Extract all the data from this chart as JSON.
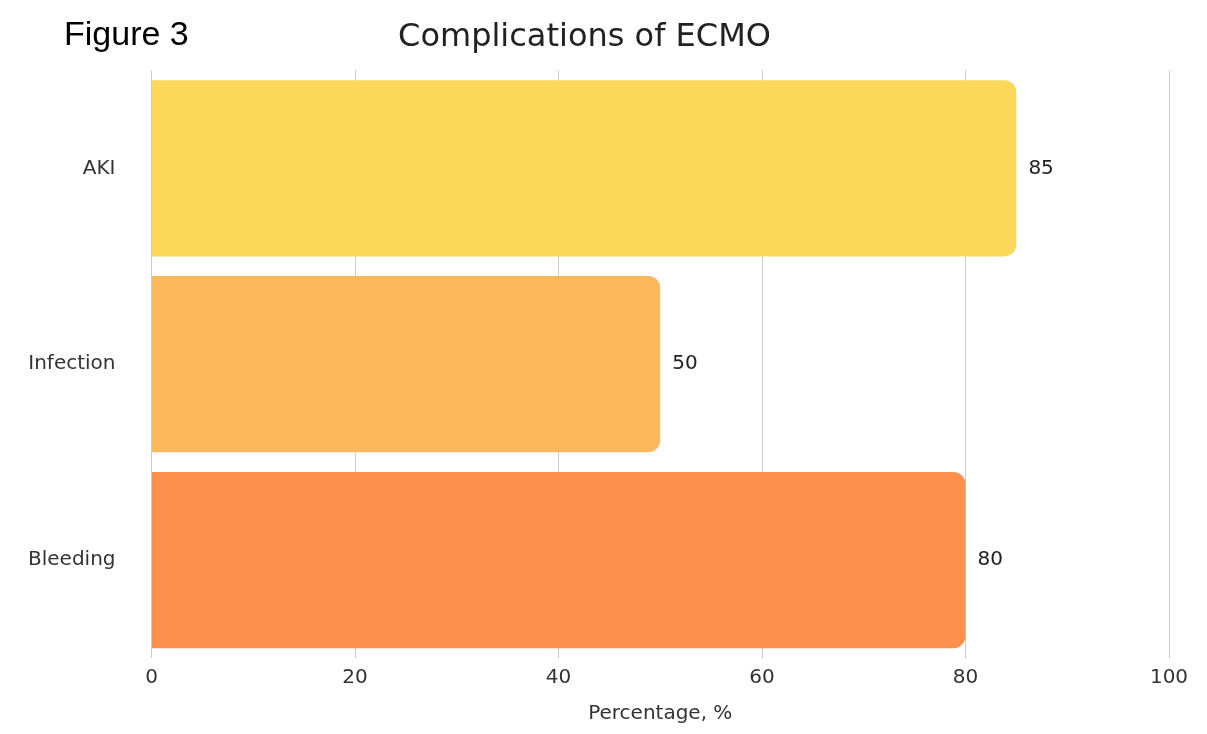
{
  "chart_data": {
    "type": "bar",
    "orientation": "horizontal",
    "title": "Complications of ECMO",
    "xlabel": "Percentage, %",
    "categories": [
      "AKI",
      "Infection",
      "Bleeding"
    ],
    "values": [
      85,
      50,
      80
    ],
    "colors": [
      "#fcd95a",
      "#fbb95c",
      "#fd914d"
    ],
    "xlim": [
      0,
      100
    ],
    "xticks": [
      0,
      20,
      40,
      60,
      80,
      100
    ],
    "grid": "x",
    "data_labels": true,
    "annotations": [
      "Figure 3"
    ]
  }
}
